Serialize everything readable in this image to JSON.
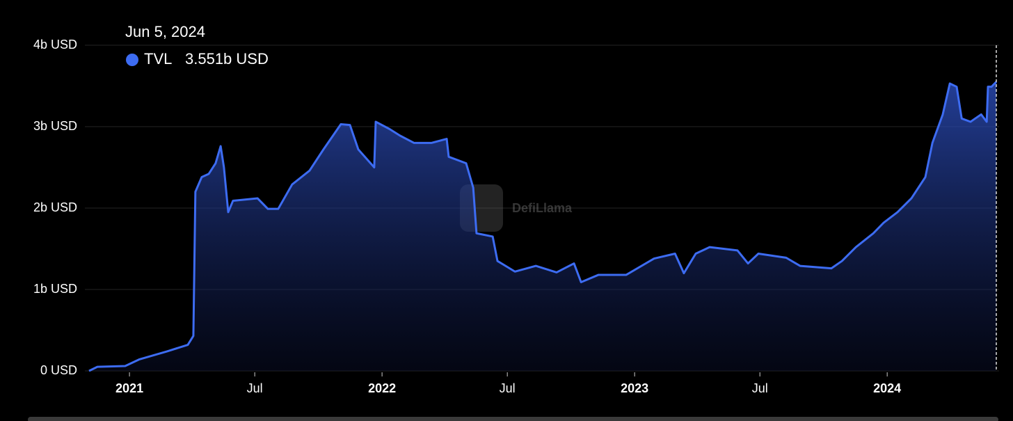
{
  "chart_data": {
    "type": "area",
    "watermark": "DefiLlama",
    "tooltip": {
      "date": "Jun 5, 2024",
      "value": 3.551,
      "value_label": "3.551b USD"
    },
    "x": [
      2020.84,
      2020.873,
      2020.983,
      2021.038,
      2021.149,
      2021.231,
      2021.253,
      2021.261,
      2021.286,
      2021.314,
      2021.341,
      2021.361,
      2021.374,
      2021.391,
      2021.41,
      2021.507,
      2021.548,
      2021.589,
      2021.644,
      2021.713,
      2021.768,
      2021.837,
      2021.873,
      2021.906,
      2021.969,
      2021.975,
      2022.03,
      2022.071,
      2022.127,
      2022.195,
      2022.256,
      2022.264,
      2022.333,
      2022.361,
      2022.374,
      2022.438,
      2022.457,
      2022.526,
      2022.609,
      2022.691,
      2022.76,
      2022.788,
      2022.857,
      2022.967,
      2023.077,
      2023.16,
      2023.195,
      2023.242,
      2023.297,
      2023.407,
      2023.449,
      2023.49,
      2023.6,
      2023.655,
      2023.779,
      2023.821,
      2023.876,
      2023.945,
      2023.986,
      2024.041,
      2024.096,
      2024.151,
      2024.179,
      2024.22,
      2024.248,
      2024.275,
      2024.295,
      2024.33,
      2024.372,
      2024.394,
      2024.399,
      2024.413,
      2024.432
    ],
    "series": [
      {
        "name": "TVL",
        "color": "#3d6cf2",
        "values": [
          0,
          0.05,
          0.06,
          0.14,
          0.24,
          0.32,
          0.43,
          2.2,
          2.38,
          2.42,
          2.55,
          2.76,
          2.5,
          1.95,
          2.09,
          2.12,
          1.99,
          1.99,
          2.29,
          2.46,
          2.72,
          3.03,
          3.02,
          2.72,
          2.5,
          3.06,
          2.97,
          2.89,
          2.8,
          2.8,
          2.85,
          2.63,
          2.55,
          2.25,
          1.69,
          1.65,
          1.35,
          1.22,
          1.29,
          1.21,
          1.32,
          1.09,
          1.18,
          1.18,
          1.38,
          1.44,
          1.2,
          1.44,
          1.52,
          1.48,
          1.32,
          1.44,
          1.39,
          1.29,
          1.26,
          1.35,
          1.52,
          1.69,
          1.82,
          1.95,
          2.12,
          2.38,
          2.8,
          3.15,
          3.53,
          3.49,
          3.1,
          3.06,
          3.15,
          3.06,
          3.49,
          3.49,
          3.551
        ]
      }
    ],
    "xlim": [
      2020.84,
      2024.432
    ],
    "xticks": [
      2021,
      {
        "value": 2021.496,
        "label": "Jul"
      },
      2022,
      {
        "value": 2022.496,
        "label": "Jul"
      },
      2023,
      {
        "value": 2023.496,
        "label": "Jul"
      },
      2024
    ],
    "ylim": [
      0,
      4
    ],
    "yticks": [
      {
        "value": 0,
        "label": "0 USD"
      },
      {
        "value": 1,
        "label": "1b USD"
      },
      {
        "value": 2,
        "label": "2b USD"
      },
      {
        "value": 3,
        "label": "3b USD"
      },
      {
        "value": 4,
        "label": "4b USD"
      }
    ],
    "grid": true
  }
}
